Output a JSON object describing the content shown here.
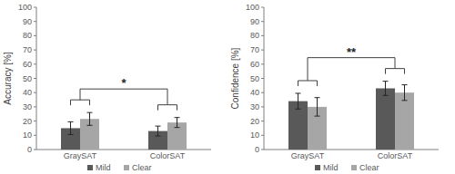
{
  "chart_data": [
    {
      "type": "bar",
      "y_label": "Accuracy [%]",
      "categories": [
        "GraySAT",
        "ColorSAT"
      ],
      "series": [
        {
          "name": "Mild",
          "color": "#595959",
          "values": [
            15,
            13
          ],
          "errors": [
            4.5,
            3.5
          ]
        },
        {
          "name": "Clear",
          "color": "#a6a6a6",
          "values": [
            21.5,
            19
          ],
          "errors": [
            4.5,
            3.5
          ]
        }
      ],
      "ylim": [
        0,
        100
      ],
      "yticks": [
        0,
        10,
        20,
        30,
        40,
        50,
        60,
        70,
        80,
        90,
        100
      ],
      "grid": false,
      "legend": "bottom",
      "annotations": [
        {
          "text": "*"
        }
      ]
    },
    {
      "type": "bar",
      "y_label": "Confidence [%]",
      "categories": [
        "GraySAT",
        "ColorSAT"
      ],
      "series": [
        {
          "name": "Mild",
          "color": "#595959",
          "values": [
            34,
            43
          ],
          "errors": [
            5.5,
            5
          ]
        },
        {
          "name": "Clear",
          "color": "#a6a6a6",
          "values": [
            30,
            40
          ],
          "errors": [
            6.5,
            5.5
          ]
        }
      ],
      "ylim": [
        0,
        100
      ],
      "yticks": [
        0,
        10,
        20,
        30,
        40,
        50,
        60,
        70,
        80,
        90,
        100
      ],
      "grid": false,
      "legend": "bottom",
      "annotations": [
        {
          "text": "**"
        }
      ]
    }
  ]
}
